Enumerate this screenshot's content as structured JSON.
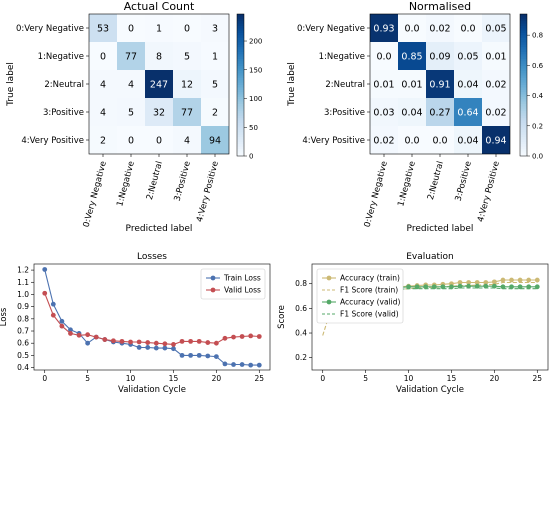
{
  "chart_data": [
    {
      "type": "heatmap",
      "title": "Actual Count",
      "xlabel": "Predicted label",
      "ylabel": "True label",
      "categories": [
        "0:Very Negative",
        "1:Negative",
        "2:Neutral",
        "3:Positive",
        "4:Very Positive"
      ],
      "values": [
        [
          53,
          0,
          1,
          0,
          3
        ],
        [
          0,
          77,
          8,
          5,
          1
        ],
        [
          4,
          4,
          247,
          12,
          5
        ],
        [
          4,
          5,
          32,
          77,
          2
        ],
        [
          2,
          0,
          0,
          4,
          94
        ]
      ],
      "colorbar": {
        "range": [
          0,
          247
        ],
        "ticks": [
          0,
          50,
          100,
          150,
          200
        ]
      },
      "colormap": "Blues",
      "value_labels": [
        [
          "53",
          "0",
          "1",
          "0",
          "3"
        ],
        [
          "0",
          "77",
          "8",
          "5",
          "1"
        ],
        [
          "4",
          "4",
          "247",
          "12",
          "5"
        ],
        [
          "4",
          "5",
          "32",
          "77",
          "2"
        ],
        [
          "2",
          "0",
          "0",
          "4",
          "94"
        ]
      ]
    },
    {
      "type": "heatmap",
      "title": "Normalised",
      "xlabel": "Predicted label",
      "ylabel": "True label",
      "categories": [
        "0:Very Negative",
        "1:Negative",
        "2:Neutral",
        "3:Positive",
        "4:Very Positive"
      ],
      "values": [
        [
          0.93,
          0.0,
          0.02,
          0.0,
          0.05
        ],
        [
          0.0,
          0.85,
          0.09,
          0.05,
          0.01
        ],
        [
          0.01,
          0.01,
          0.91,
          0.04,
          0.02
        ],
        [
          0.03,
          0.04,
          0.27,
          0.64,
          0.02
        ],
        [
          0.02,
          0.0,
          0.0,
          0.04,
          0.94
        ]
      ],
      "colorbar": {
        "range": [
          0,
          0.94
        ],
        "ticks": [
          0.0,
          0.2,
          0.4,
          0.6,
          0.8
        ]
      },
      "colormap": "Blues",
      "value_labels": [
        [
          "0.93",
          "0.0",
          "0.02",
          "0.0",
          "0.05"
        ],
        [
          "0.0",
          "0.85",
          "0.09",
          "0.05",
          "0.01"
        ],
        [
          "0.01",
          "0.01",
          "0.91",
          "0.04",
          "0.02"
        ],
        [
          "0.03",
          "0.04",
          "0.27",
          "0.64",
          "0.02"
        ],
        [
          "0.02",
          "0.0",
          "0.0",
          "0.04",
          "0.94"
        ]
      ]
    },
    {
      "type": "line",
      "title": "Losses",
      "xlabel": "Validation Cycle",
      "ylabel": "Loss",
      "xlim": [
        -1.25,
        26.25
      ],
      "ylim": [
        0.38,
        1.25
      ],
      "xticks": [
        0,
        5,
        10,
        15,
        20,
        25
      ],
      "yticks": [
        0.4,
        0.5,
        0.6,
        0.7,
        0.8,
        0.9,
        1.0,
        1.1,
        1.2
      ],
      "legend": "top-right",
      "x": [
        0,
        1,
        2,
        3,
        4,
        5,
        6,
        7,
        8,
        9,
        10,
        11,
        12,
        13,
        14,
        15,
        16,
        17,
        18,
        19,
        20,
        21,
        22,
        23,
        24,
        25
      ],
      "series": [
        {
          "name": "Train Loss",
          "color": "#4c72b0",
          "values": [
            1.205,
            0.92,
            0.78,
            0.71,
            0.68,
            0.6,
            0.65,
            0.63,
            0.61,
            0.6,
            0.59,
            0.565,
            0.565,
            0.56,
            0.56,
            0.555,
            0.5,
            0.5,
            0.5,
            0.495,
            0.49,
            0.43,
            0.425,
            0.425,
            0.42,
            0.42
          ]
        },
        {
          "name": "Valid Loss",
          "color": "#c44e52",
          "values": [
            1.01,
            0.83,
            0.74,
            0.68,
            0.665,
            0.67,
            0.65,
            0.63,
            0.62,
            0.615,
            0.61,
            0.61,
            0.605,
            0.6,
            0.595,
            0.59,
            0.615,
            0.615,
            0.615,
            0.605,
            0.6,
            0.64,
            0.65,
            0.655,
            0.66,
            0.655
          ]
        }
      ]
    },
    {
      "type": "line",
      "title": "Evaluation",
      "xlabel": "Validation Cycle",
      "ylabel": "Score",
      "xlim": [
        -1.25,
        26.25
      ],
      "ylim": [
        0.1,
        0.96
      ],
      "xticks": [
        0,
        5,
        10,
        15,
        20,
        25
      ],
      "yticks": [
        0.2,
        0.4,
        0.6,
        0.8
      ],
      "legend": "top-left",
      "x": [
        0,
        1,
        2,
        3,
        4,
        5,
        6,
        7,
        8,
        9,
        10,
        11,
        12,
        13,
        14,
        15,
        16,
        17,
        18,
        19,
        20,
        21,
        22,
        23,
        24,
        25
      ],
      "series": [
        {
          "name": "Accuracy (train)",
          "color": "#ccb974",
          "style": "solid-markers",
          "values": [
            0.51,
            0.67,
            0.72,
            0.74,
            0.75,
            0.755,
            0.76,
            0.765,
            0.77,
            0.775,
            0.78,
            0.785,
            0.79,
            0.79,
            0.795,
            0.8,
            0.81,
            0.81,
            0.81,
            0.81,
            0.815,
            0.83,
            0.83,
            0.83,
            0.83,
            0.83
          ]
        },
        {
          "name": "F1 Score (train)",
          "color": "#ccb974",
          "style": "dashed",
          "values": [
            0.38,
            0.6,
            0.68,
            0.71,
            0.725,
            0.73,
            0.735,
            0.745,
            0.75,
            0.755,
            0.76,
            0.765,
            0.77,
            0.77,
            0.775,
            0.78,
            0.785,
            0.785,
            0.79,
            0.79,
            0.795,
            0.81,
            0.81,
            0.81,
            0.81,
            0.81
          ]
        },
        {
          "name": "Accuracy (valid)",
          "color": "#55a868",
          "style": "solid-markers",
          "values": [
            0.6,
            0.69,
            0.73,
            0.755,
            0.76,
            0.765,
            0.765,
            0.77,
            0.77,
            0.77,
            0.775,
            0.775,
            0.775,
            0.775,
            0.775,
            0.775,
            0.78,
            0.78,
            0.78,
            0.78,
            0.78,
            0.775,
            0.775,
            0.775,
            0.775,
            0.775
          ]
        },
        {
          "name": "F1 Score (valid)",
          "color": "#55a868",
          "style": "dashed",
          "values": [
            0.52,
            0.65,
            0.7,
            0.72,
            0.73,
            0.74,
            0.745,
            0.75,
            0.755,
            0.755,
            0.76,
            0.76,
            0.76,
            0.76,
            0.76,
            0.76,
            0.765,
            0.765,
            0.765,
            0.765,
            0.765,
            0.76,
            0.76,
            0.76,
            0.76,
            0.76
          ]
        }
      ]
    }
  ]
}
